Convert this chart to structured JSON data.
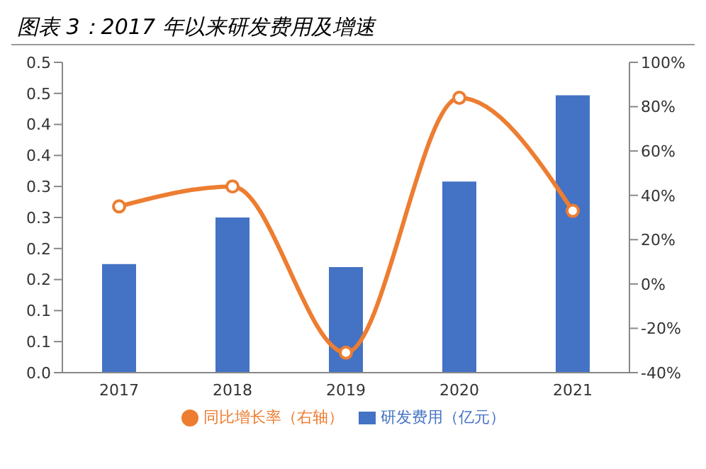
{
  "chart_data": {
    "type": "bar",
    "title": "图表 3：2017 年以来研发费用及增速",
    "categories": [
      "2017",
      "2018",
      "2019",
      "2020",
      "2021"
    ],
    "series": [
      {
        "name": "研发费用（亿元）",
        "color": "#4472c4",
        "values": [
          0.175,
          0.25,
          0.17,
          0.308,
          0.447
        ]
      },
      {
        "name": "同比增长率（右轴）",
        "type": "line",
        "axis": "y2",
        "color": "#ed7d31",
        "marker": "circle",
        "values": [
          35,
          44,
          -31,
          84,
          33
        ]
      }
    ],
    "ylim": [
      0,
      0.5
    ],
    "yticks": [
      {
        "value": 0,
        "label": "0.0"
      },
      {
        "value": 0.05,
        "label": "0.1"
      },
      {
        "value": 0.1,
        "label": "0.1"
      },
      {
        "value": 0.15,
        "label": "0.2"
      },
      {
        "value": 0.2,
        "label": "0.2"
      },
      {
        "value": 0.25,
        "label": "0.3"
      },
      {
        "value": 0.3,
        "label": "0.3"
      },
      {
        "value": 0.35,
        "label": "0.4"
      },
      {
        "value": 0.4,
        "label": "0.4"
      },
      {
        "value": 0.45,
        "label": "0.5"
      },
      {
        "value": 0.5,
        "label": "0.5"
      }
    ],
    "y2lim": [
      -40,
      100
    ],
    "y2ticks": [
      {
        "value": -40,
        "label": "-40%"
      },
      {
        "value": -20,
        "label": "-20%"
      },
      {
        "value": 0,
        "label": "0%"
      },
      {
        "value": 20,
        "label": "20%"
      },
      {
        "value": 40,
        "label": "40%"
      },
      {
        "value": 60,
        "label": "60%"
      },
      {
        "value": 80,
        "label": "80%"
      },
      {
        "value": 100,
        "label": "100%"
      }
    ],
    "grid": false,
    "legend": "bottom"
  }
}
